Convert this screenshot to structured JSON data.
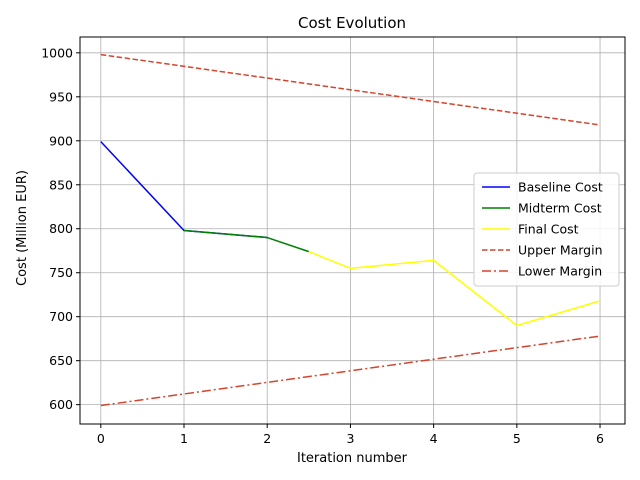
{
  "chart_data": {
    "type": "line",
    "title": "Cost Evolution",
    "xlabel": "Iteration number",
    "ylabel": "Cost (Million EUR)",
    "xlim": [
      -0.25,
      6.3
    ],
    "ylim": [
      578,
      1018
    ],
    "xticks": [
      0,
      1,
      2,
      3,
      4,
      5,
      6
    ],
    "yticks": [
      600,
      650,
      700,
      750,
      800,
      850,
      900,
      950,
      1000
    ],
    "grid": true,
    "legend_position": "center-right",
    "series": [
      {
        "name": "Baseline Cost",
        "color": "#0000ff",
        "style": "solid",
        "x": [
          0,
          1,
          2
        ],
        "values": [
          899,
          798,
          790
        ]
      },
      {
        "name": "Midterm Cost",
        "color": "#008000",
        "style": "solid",
        "x": [
          1,
          2,
          2.5
        ],
        "values": [
          798,
          790,
          774
        ]
      },
      {
        "name": "Final Cost",
        "color": "#ffff00",
        "style": "solid",
        "x": [
          2.5,
          3,
          4,
          5,
          6
        ],
        "values": [
          774,
          755,
          764,
          690,
          718
        ]
      },
      {
        "name": "Upper Margin",
        "color": "#d4452e",
        "style": "dashed",
        "x": [
          0,
          6
        ],
        "values": [
          998,
          918
        ]
      },
      {
        "name": "Lower Margin",
        "color": "#d4452e",
        "style": "dashdot",
        "x": [
          0,
          6
        ],
        "values": [
          599,
          678
        ]
      }
    ]
  }
}
